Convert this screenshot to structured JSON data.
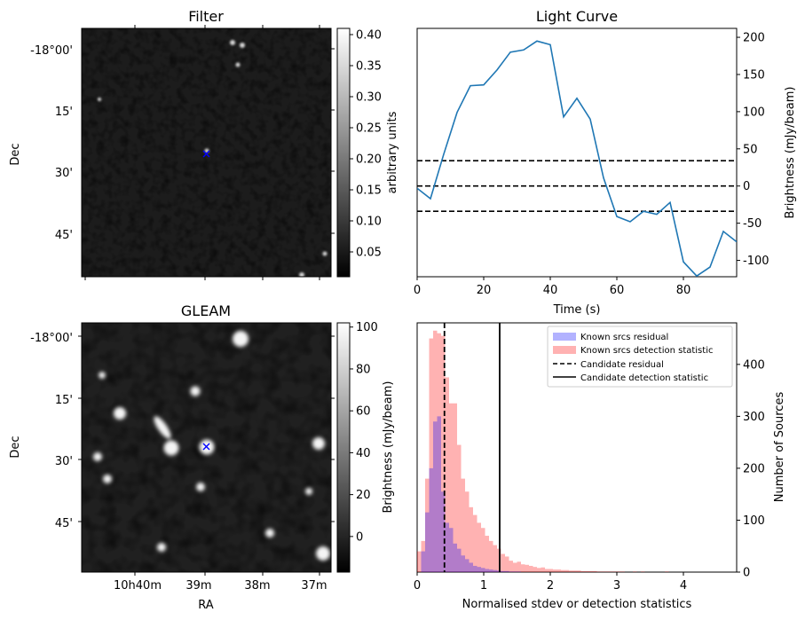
{
  "chart_data": [
    {
      "type": "heatmap",
      "title": "Filter",
      "ylabel": "Dec",
      "yticks": [
        "-18°00'",
        "15'",
        "30'",
        "45'"
      ],
      "colorbar": {
        "label": "arbitrary units",
        "range": [
          0.01,
          0.41
        ],
        "ticks": [
          "0.05",
          "0.10",
          "0.15",
          "0.20",
          "0.25",
          "0.30",
          "0.35",
          "0.40"
        ],
        "colormap": "gray"
      },
      "marker": {
        "symbol": "x",
        "color": "#0000ff"
      }
    },
    {
      "type": "line",
      "title": "Light Curve",
      "xlabel": "Time (s)",
      "ylabel": "Brightness (mJy/beam)",
      "xlim": [
        0,
        96
      ],
      "ylim": [
        -122,
        212
      ],
      "xticks": [
        0,
        20,
        40,
        60,
        80
      ],
      "yticks": [
        -100,
        -50,
        0,
        50,
        100,
        150,
        200
      ],
      "series": [
        {
          "color": "#1f77b4",
          "x": [
            0,
            4,
            8,
            12,
            16,
            20,
            24,
            28,
            32,
            36,
            40,
            44,
            48,
            52,
            56,
            60,
            64,
            68,
            72,
            76,
            80,
            84,
            88,
            92,
            96
          ],
          "y": [
            -3,
            -17,
            43,
            99,
            135,
            136,
            156,
            180,
            183,
            195,
            190,
            93,
            118,
            90,
            11,
            -41,
            -48,
            -34,
            -38,
            -22,
            -102,
            -121,
            -109,
            -61,
            -75
          ]
        }
      ],
      "hlines": [
        {
          "y": 34,
          "style": "dashed",
          "color": "#000000"
        },
        {
          "y": 0,
          "style": "dashed",
          "color": "#000000"
        },
        {
          "y": -34,
          "style": "dashed",
          "color": "#000000"
        }
      ]
    },
    {
      "type": "heatmap",
      "title": "GLEAM",
      "xlabel": "RA",
      "ylabel": "Dec",
      "xticks": [
        "10h40m",
        "39m",
        "38m",
        "37m"
      ],
      "yticks": [
        "-18°00'",
        "15'",
        "30'",
        "45'"
      ],
      "colorbar": {
        "label": "Brightness (mJy/beam)",
        "range": [
          -17,
          102
        ],
        "ticks": [
          "0",
          "20",
          "40",
          "60",
          "80",
          "100"
        ],
        "colormap": "gray"
      },
      "marker": {
        "symbol": "x",
        "color": "#0000ff"
      }
    },
    {
      "type": "bar",
      "xlabel": "Normalised stdev or detection statistics",
      "ylabel": "Number of Sources",
      "xlim": [
        0,
        4.8
      ],
      "ylim": [
        0,
        480
      ],
      "xticks": [
        0,
        1,
        2,
        3,
        4
      ],
      "yticks": [
        0,
        100,
        200,
        300,
        400
      ],
      "bin_width": 0.06,
      "series": [
        {
          "name": "Known srcs residual",
          "color": "#0000ff",
          "alpha": 0.3,
          "bin_start": 0,
          "values": [
            0,
            40,
            115,
            200,
            290,
            300,
            155,
            95,
            85,
            55,
            45,
            32,
            25,
            18,
            12,
            10,
            8,
            6,
            5,
            4,
            3,
            2,
            2,
            1,
            1,
            1
          ]
        },
        {
          "name": "Known srcs detection statistic",
          "color": "#ff0000",
          "alpha": 0.3,
          "bin_start": 0,
          "values": [
            40,
            60,
            180,
            450,
            465,
            460,
            455,
            375,
            325,
            325,
            245,
            180,
            155,
            125,
            110,
            95,
            85,
            70,
            60,
            52,
            45,
            35,
            30,
            22,
            18,
            20,
            15,
            14,
            12,
            10,
            8,
            9,
            6,
            6,
            5,
            5,
            4,
            4,
            3,
            3,
            3,
            2,
            2,
            2,
            2,
            1,
            1,
            1,
            1,
            1,
            1,
            1,
            0,
            0,
            1,
            0,
            1,
            0,
            0,
            0,
            0,
            0,
            1
          ]
        }
      ],
      "vlines": [
        {
          "name": "Candidate residual",
          "x": 0.41,
          "style": "dashed",
          "color": "#000000"
        },
        {
          "name": "Candidate detection statistic",
          "x": 1.24,
          "style": "solid",
          "color": "#000000"
        }
      ],
      "legend": "top-right"
    }
  ]
}
